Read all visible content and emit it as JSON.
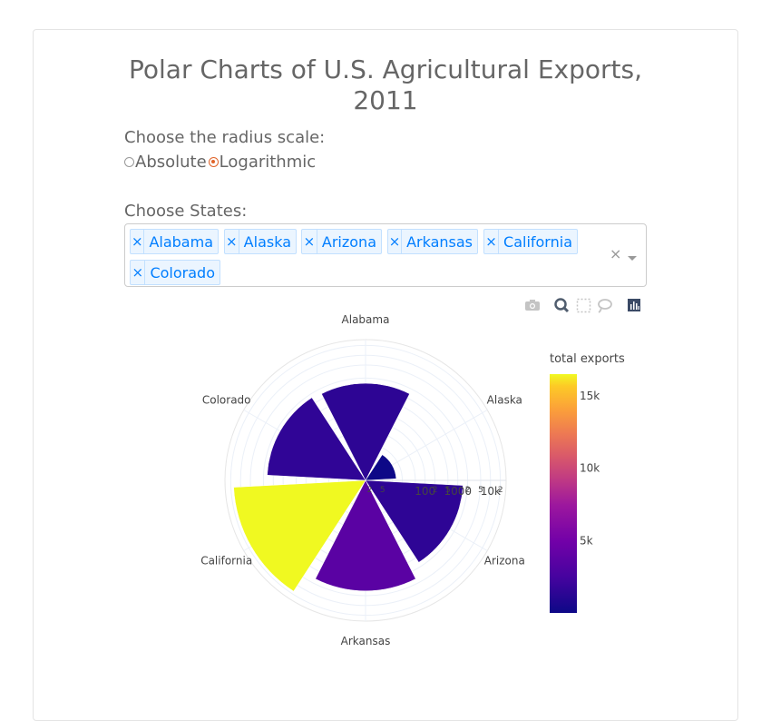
{
  "title_line1": "Polar Charts of U.S. Agricultural Exports,",
  "title_line2": "2011",
  "radius_label": "Choose the radius scale:",
  "radius_options": [
    {
      "label": "Absolute",
      "selected": false
    },
    {
      "label": "Logarithmic",
      "selected": true
    }
  ],
  "states_label": "Choose States:",
  "selected_states": [
    "Alabama",
    "Alaska",
    "Arizona",
    "Arkansas",
    "California",
    "Colorado"
  ],
  "remove_glyph": "×",
  "clear_glyph": "×",
  "modebar": [
    "camera-icon",
    "zoom-icon",
    "box-select-icon",
    "lasso-icon",
    "plotly-logo-icon"
  ],
  "colors": {
    "accent": "#007eff",
    "tag_bg": "#ebf5ff",
    "radio_on": "#e0642a"
  },
  "chart_data": {
    "type": "barpolar",
    "radial_axis": "log",
    "categories": [
      "Alabama",
      "Alaska",
      "Arizona",
      "Arkansas",
      "California",
      "Colorado"
    ],
    "values": [
      1390,
      13,
      1460,
      3590,
      16500,
      1550
    ],
    "color_values": [
      1390,
      13,
      1460,
      3590,
      16500,
      1550
    ],
    "radial_ticks": [
      "2",
      "5",
      "100",
      "2",
      "5",
      "1000",
      "2",
      "5",
      "10k",
      "2"
    ],
    "colorbar_title": "total exports",
    "colorbar_ticks": [
      "15k",
      "10k",
      "5k"
    ],
    "colorbar_range": [
      13,
      16500
    ],
    "colorscale": "plasma"
  }
}
